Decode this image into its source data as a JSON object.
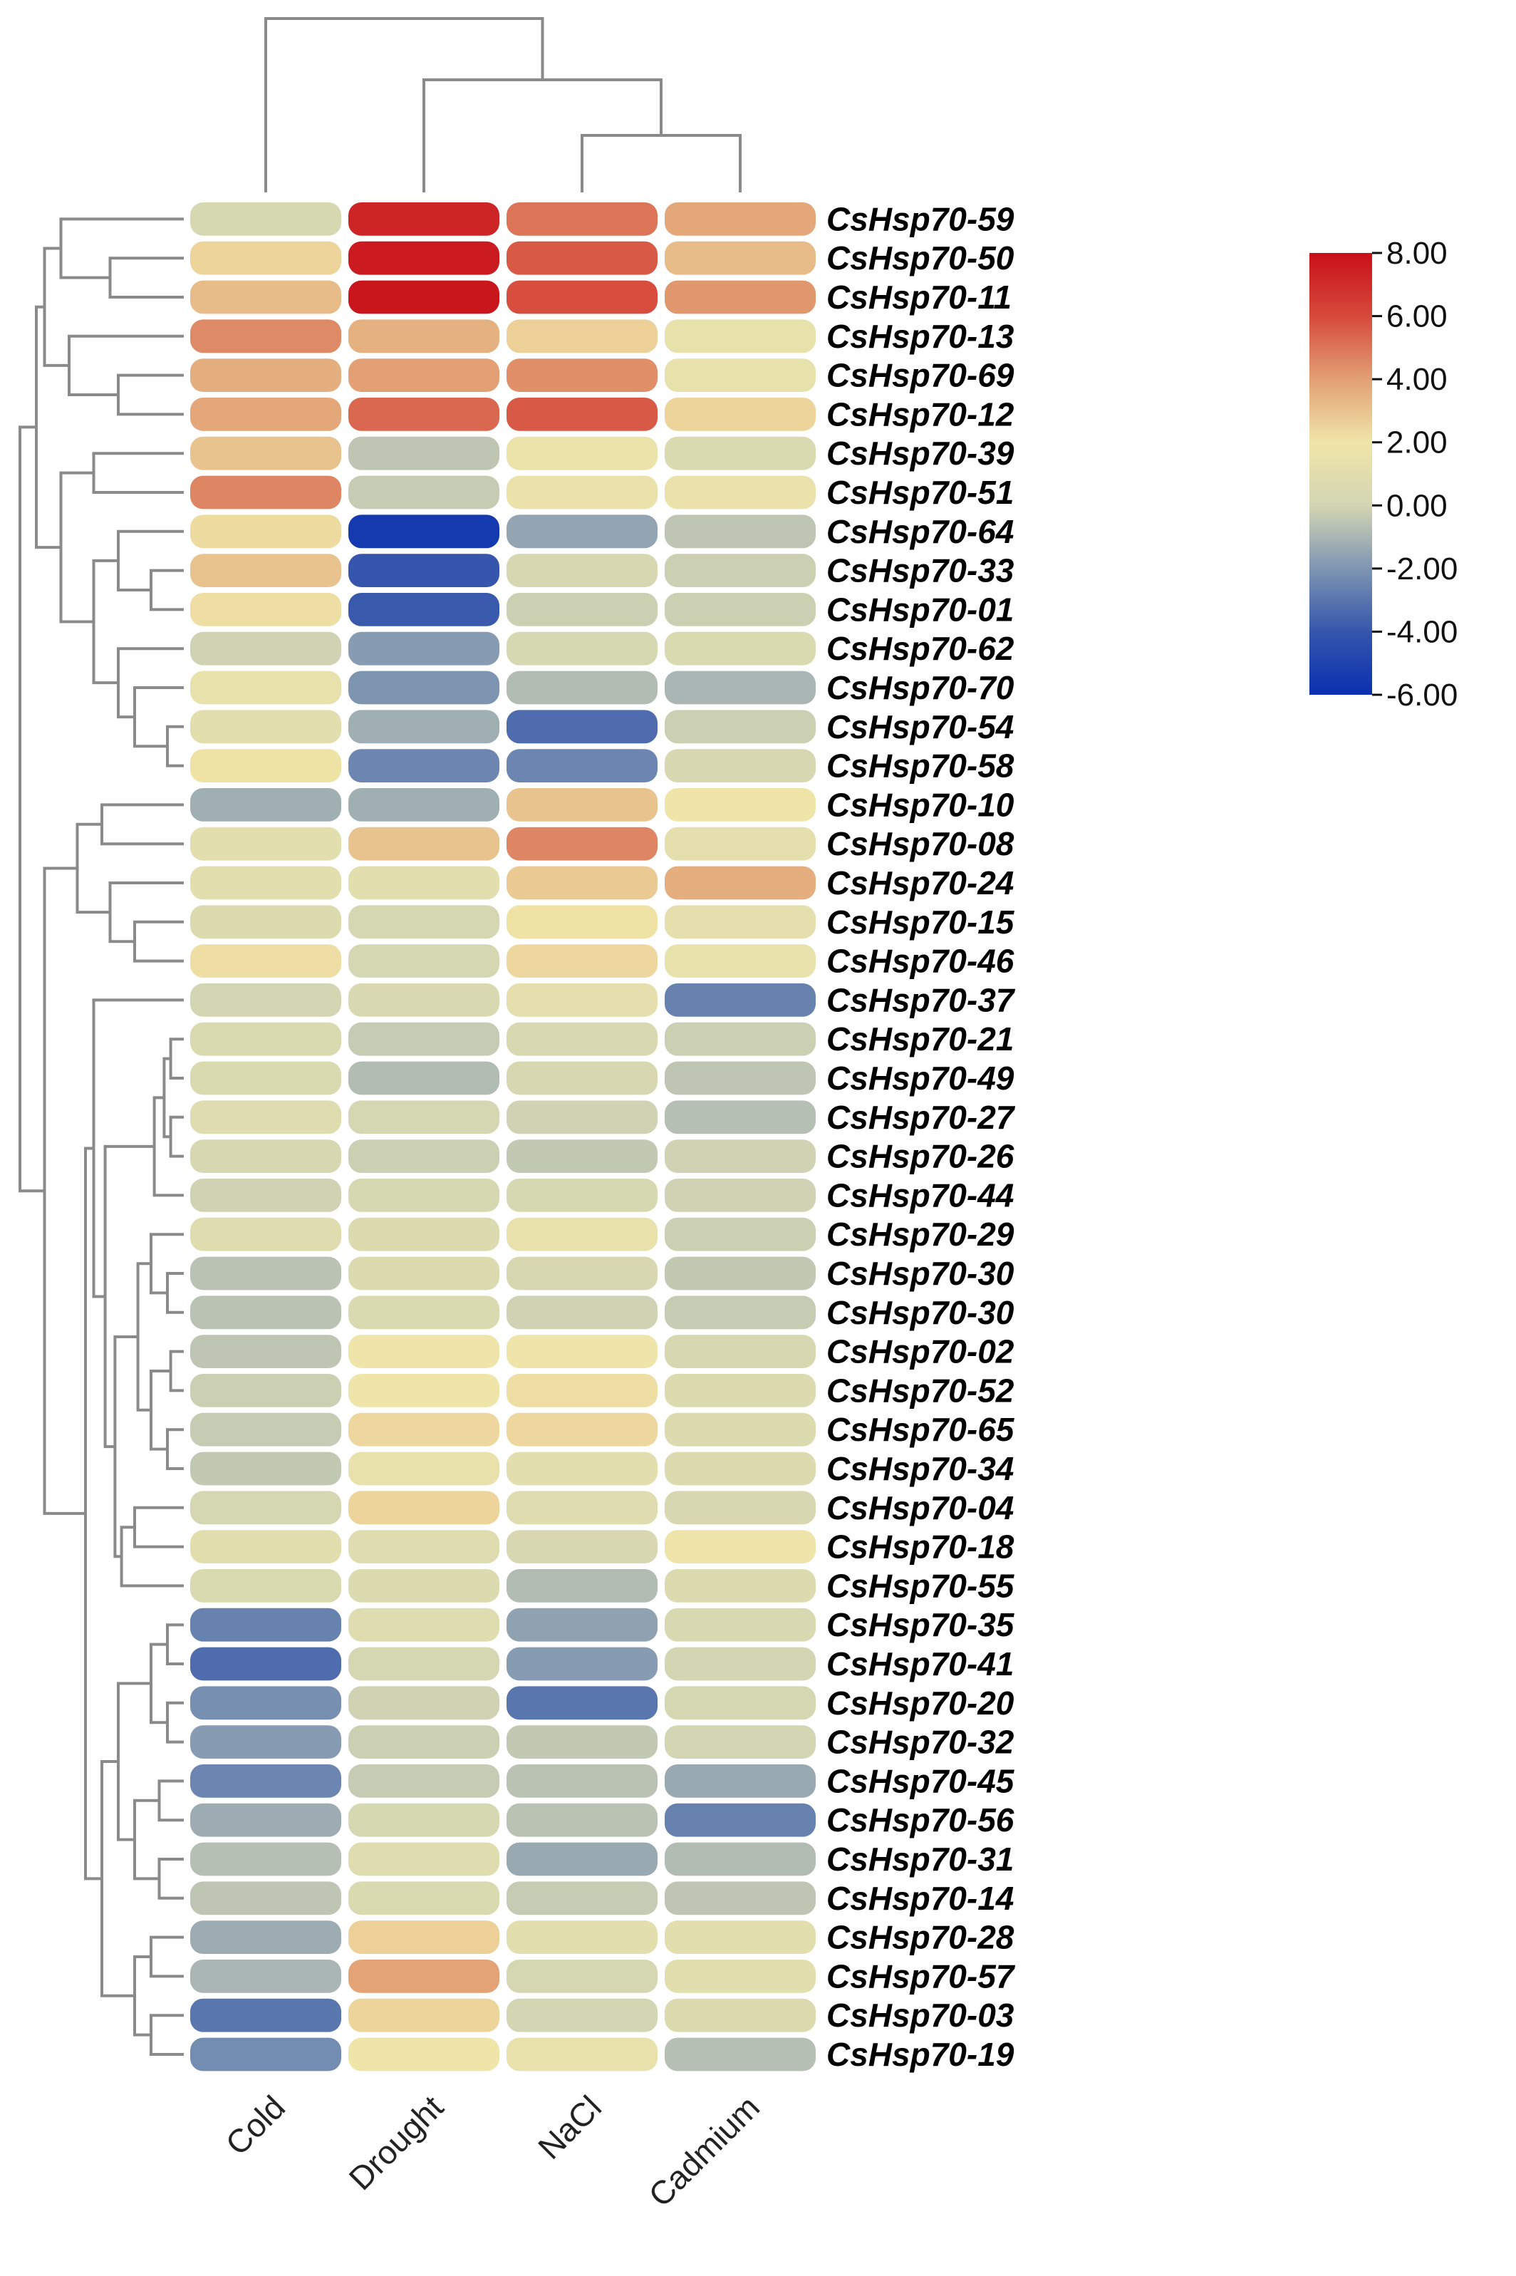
{
  "chart_data": {
    "type": "heatmap",
    "columns": [
      "Cold",
      "Drought",
      "NaCl",
      "Cadmium"
    ],
    "rows": [
      "CsHsp70-59",
      "CsHsp70-50",
      "CsHsp70-11",
      "CsHsp70-13",
      "CsHsp70-69",
      "CsHsp70-12",
      "CsHsp70-39",
      "CsHsp70-51",
      "CsHsp70-64",
      "CsHsp70-33",
      "CsHsp70-01",
      "CsHsp70-62",
      "CsHsp70-70",
      "CsHsp70-54",
      "CsHsp70-58",
      "CsHsp70-10",
      "CsHsp70-08",
      "CsHsp70-24",
      "CsHsp70-15",
      "CsHsp70-46",
      "CsHsp70-37",
      "CsHsp70-21",
      "CsHsp70-49",
      "CsHsp70-27",
      "CsHsp70-26",
      "CsHsp70-44",
      "CsHsp70-29",
      "CsHsp70-30",
      "CsHsp70-30",
      "CsHsp70-02",
      "CsHsp70-52",
      "CsHsp70-65",
      "CsHsp70-34",
      "CsHsp70-04",
      "CsHsp70-18",
      "CsHsp70-55",
      "CsHsp70-35",
      "CsHsp70-41",
      "CsHsp70-20",
      "CsHsp70-32",
      "CsHsp70-45",
      "CsHsp70-56",
      "CsHsp70-31",
      "CsHsp70-14",
      "CsHsp70-28",
      "CsHsp70-57",
      "CsHsp70-03",
      "CsHsp70-19"
    ],
    "values": [
      [
        0.2,
        7.3,
        5.0,
        3.8
      ],
      [
        2.5,
        7.6,
        5.6,
        3.2
      ],
      [
        3.2,
        7.8,
        5.9,
        4.2
      ],
      [
        4.5,
        3.5,
        2.6,
        1.4
      ],
      [
        3.6,
        4.0,
        4.4,
        1.4
      ],
      [
        3.8,
        5.3,
        5.6,
        2.5
      ],
      [
        3.0,
        -0.5,
        1.7,
        0.5
      ],
      [
        4.6,
        -0.3,
        1.6,
        1.6
      ],
      [
        2.3,
        -5.5,
        -1.5,
        -0.5
      ],
      [
        3.0,
        -4.0,
        0.3,
        -0.2
      ],
      [
        2.2,
        -3.9,
        -0.2,
        -0.2
      ],
      [
        -0.1,
        -1.8,
        0.2,
        0.5
      ],
      [
        1.5,
        -2.0,
        -0.8,
        -1.0
      ],
      [
        1.0,
        -1.2,
        -3.3,
        -0.2
      ],
      [
        2.1,
        -2.5,
        -2.5,
        0.3
      ],
      [
        -1.2,
        -1.2,
        3.0,
        2.0
      ],
      [
        1.0,
        3.0,
        4.6,
        1.2
      ],
      [
        1.0,
        1.0,
        2.8,
        3.6
      ],
      [
        0.6,
        0.1,
        2.1,
        1.2
      ],
      [
        2.2,
        0.1,
        2.4,
        1.4
      ],
      [
        0.0,
        0.4,
        1.2,
        -2.6
      ],
      [
        0.5,
        -0.3,
        0.4,
        -0.2
      ],
      [
        0.5,
        -0.8,
        0.3,
        -0.5
      ],
      [
        0.8,
        0.1,
        -0.1,
        -0.7
      ],
      [
        0.3,
        -0.2,
        -0.4,
        -0.1
      ],
      [
        -0.1,
        0.2,
        0.2,
        -0.1
      ],
      [
        0.8,
        0.6,
        1.5,
        -0.2
      ],
      [
        -0.6,
        0.6,
        0.3,
        -0.4
      ],
      [
        -0.6,
        0.5,
        -0.1,
        -0.3
      ],
      [
        -0.5,
        1.9,
        1.9,
        0.3
      ],
      [
        -0.2,
        2.0,
        2.2,
        0.6
      ],
      [
        -0.3,
        2.4,
        2.4,
        0.6
      ],
      [
        -0.4,
        1.5,
        1.0,
        0.6
      ],
      [
        0.1,
        2.5,
        0.8,
        0.3
      ],
      [
        1.0,
        0.8,
        0.3,
        1.9
      ],
      [
        0.5,
        0.6,
        -0.8,
        0.6
      ],
      [
        -2.6,
        0.8,
        -1.6,
        0.4
      ],
      [
        -3.3,
        0.1,
        -1.8,
        0.0
      ],
      [
        -2.2,
        -0.1,
        -3.0,
        0.1
      ],
      [
        -1.8,
        -0.2,
        -0.4,
        0.0
      ],
      [
        -2.5,
        -0.3,
        -0.6,
        -1.4
      ],
      [
        -1.3,
        0.2,
        -0.6,
        -2.6
      ],
      [
        -0.7,
        0.8,
        -1.4,
        -0.8
      ],
      [
        -0.5,
        0.5,
        -0.3,
        -0.5
      ],
      [
        -1.3,
        2.6,
        1.1,
        1.0
      ],
      [
        -1.0,
        3.9,
        0.1,
        1.0
      ],
      [
        -3.0,
        2.5,
        0.0,
        0.6
      ],
      [
        -2.3,
        2.0,
        1.5,
        -0.7
      ]
    ],
    "color_scale": {
      "min": -6.0,
      "max": 8.0,
      "stops": [
        {
          "value": -6.0,
          "color": "#0a2fb0"
        },
        {
          "value": -4.0,
          "color": "#3556ac"
        },
        {
          "value": -2.0,
          "color": "#7e95b2"
        },
        {
          "value": 0.0,
          "color": "#d3d6b3"
        },
        {
          "value": 2.0,
          "color": "#f0e5a8"
        },
        {
          "value": 4.0,
          "color": "#e2a074"
        },
        {
          "value": 6.0,
          "color": "#d6493b"
        },
        {
          "value": 8.0,
          "color": "#c8101a"
        }
      ],
      "tick_labels": [
        "8.00",
        "6.00",
        "4.00",
        "2.00",
        "0.00",
        "-2.00",
        "-4.00",
        "-6.00"
      ]
    },
    "legend_position": "top-right",
    "grid": false
  }
}
